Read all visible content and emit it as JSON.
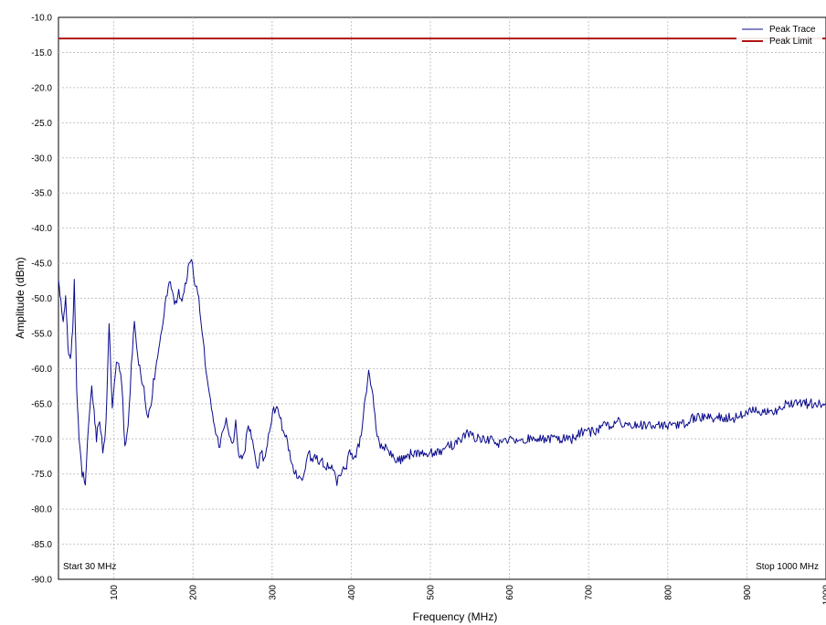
{
  "chart_data": {
    "type": "line",
    "xlabel": "Frequency (MHz)",
    "ylabel": "Amplitude (dBm)",
    "xlim": [
      30,
      1000
    ],
    "ylim": [
      -90,
      -10
    ],
    "x_ticks": [
      100,
      200,
      300,
      400,
      500,
      600,
      700,
      800,
      900,
      1000
    ],
    "x_tick_labels": [
      "100",
      "200",
      "300",
      "400",
      "500",
      "600",
      "700",
      "800",
      "900",
      "1000"
    ],
    "y_ticks": [
      -10,
      -15,
      -20,
      -25,
      -30,
      -35,
      -40,
      -45,
      -50,
      -55,
      -60,
      -65,
      -70,
      -75,
      -80,
      -85,
      -90
    ],
    "y_tick_labels": [
      "-10.0",
      "-15.0",
      "-20.0",
      "-25.0",
      "-30.0",
      "-35.0",
      "-40.0",
      "-45.0",
      "-50.0",
      "-55.0",
      "-60.0",
      "-65.0",
      "-70.0",
      "-75.0",
      "-80.0",
      "-85.0",
      "-90.0"
    ],
    "grid": true,
    "legend_position": "top-right",
    "annotations": {
      "start": "Start 30 MHz",
      "stop": "Stop 1000 MHz"
    },
    "series": [
      {
        "name": "Peak Trace",
        "color": "#0a0a8c",
        "x": [
          30,
          33,
          36,
          39,
          42,
          45,
          48,
          50,
          53,
          56,
          60,
          64,
          68,
          72,
          75,
          78,
          82,
          86,
          90,
          94,
          98,
          102,
          106,
          110,
          114,
          118,
          122,
          126,
          130,
          134,
          138,
          142,
          146,
          150,
          154,
          158,
          162,
          166,
          170,
          174,
          178,
          182,
          186,
          190,
          194,
          198,
          202,
          206,
          210,
          214,
          218,
          222,
          226,
          230,
          234,
          238,
          242,
          246,
          250,
          254,
          258,
          262,
          266,
          270,
          274,
          278,
          282,
          286,
          290,
          294,
          298,
          302,
          306,
          310,
          314,
          318,
          322,
          326,
          330,
          334,
          338,
          342,
          346,
          350,
          354,
          358,
          362,
          366,
          370,
          374,
          378,
          382,
          386,
          390,
          394,
          398,
          402,
          406,
          410,
          414,
          418,
          422,
          426,
          430,
          434,
          438,
          442,
          446,
          450,
          455,
          460,
          465,
          470,
          475,
          480,
          490,
          500,
          510,
          520,
          530,
          540,
          550,
          555,
          560,
          570,
          580,
          590,
          600,
          610,
          620,
          630,
          640,
          650,
          660,
          670,
          680,
          690,
          700,
          710,
          720,
          730,
          735,
          740,
          750,
          760,
          770,
          780,
          790,
          800,
          810,
          820,
          830,
          840,
          850,
          860,
          870,
          880,
          890,
          900,
          910,
          920,
          930,
          940,
          950,
          960,
          970,
          980,
          990,
          1000
        ],
        "values": [
          -48,
          -50,
          -54,
          -50,
          -57,
          -59,
          -54,
          -47,
          -63,
          -70,
          -75,
          -76,
          -68,
          -62,
          -66,
          -70,
          -67,
          -72,
          -68,
          -54,
          -65,
          -60,
          -59,
          -62,
          -71,
          -68,
          -60,
          -53,
          -58,
          -61,
          -63,
          -67,
          -66,
          -62,
          -59,
          -56,
          -53,
          -50,
          -47,
          -49,
          -51,
          -49,
          -51,
          -48,
          -46,
          -44,
          -48,
          -49,
          -53,
          -57,
          -62,
          -64,
          -67,
          -70,
          -71,
          -69,
          -67,
          -70,
          -71,
          -68,
          -72,
          -73,
          -71,
          -68,
          -70,
          -72,
          -74,
          -72,
          -73,
          -71,
          -68,
          -66,
          -65,
          -67,
          -69,
          -70,
          -72,
          -74,
          -75,
          -75,
          -76,
          -74,
          -72,
          -73,
          -72,
          -73,
          -73,
          -74,
          -74,
          -74,
          -75,
          -76,
          -75,
          -74,
          -74,
          -72,
          -73,
          -72,
          -71,
          -68,
          -64,
          -60,
          -63,
          -67,
          -70,
          -71,
          -71,
          -72,
          -72,
          -73,
          -73,
          -73,
          -73,
          -72,
          -72,
          -72,
          -72,
          -72,
          -71,
          -71,
          -70,
          -69,
          -70,
          -70,
          -70,
          -70,
          -71,
          -70,
          -70,
          -70,
          -70,
          -70,
          -70,
          -70,
          -70,
          -70,
          -69,
          -69,
          -69,
          -68,
          -68,
          -67,
          -68,
          -68,
          -68,
          -68,
          -68,
          -68,
          -68,
          -68,
          -68,
          -67,
          -67,
          -67,
          -67,
          -67,
          -67,
          -67,
          -66,
          -66,
          -66,
          -66,
          -66,
          -65,
          -65,
          -65,
          -65,
          -65,
          -65
        ]
      },
      {
        "name": "Peak Limit",
        "color": "#b01515",
        "x": [
          30,
          1000
        ],
        "values": [
          -13,
          -13
        ]
      }
    ]
  }
}
